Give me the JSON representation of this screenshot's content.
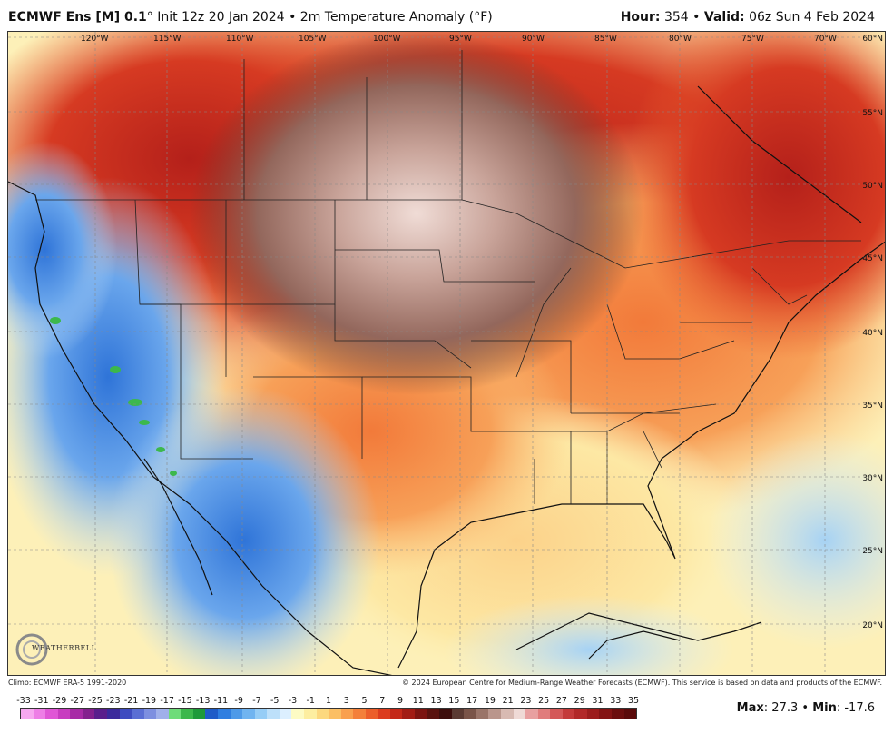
{
  "header": {
    "model": "ECMWF Ens [M] 0.1",
    "degree": "°",
    "init": "Init 12z 20 Jan 2024",
    "bullet": "•",
    "field": "2m Temperature Anomaly (°F)",
    "hour_label": "Hour:",
    "hour_value": "354",
    "valid_label": "Valid:",
    "valid_value": "06z Sun 4 Feb 2024"
  },
  "map": {
    "longitude_labels": [
      "120°W",
      "115°W",
      "110°W",
      "105°W",
      "100°W",
      "95°W",
      "90°W",
      "85°W",
      "80°W",
      "75°W",
      "70°W"
    ],
    "latitude_labels": [
      "60°N",
      "55°N",
      "50°N",
      "45°N",
      "40°N",
      "35°N",
      "30°N",
      "25°N",
      "20°N"
    ]
  },
  "credits": {
    "climo": "Climo: ECMWF ERA-5 1991-2020",
    "copyright": "© 2024 European Centre for Medium-Range Weather Forecasts (ECMWF). This service is based on data and products of the ECMWF."
  },
  "logo": {
    "text": "WEATHERBELL"
  },
  "scale": {
    "labels": [
      "-33",
      "-31",
      "-29",
      "-27",
      "-25",
      "-23",
      "-21",
      "-19",
      "-17",
      "-15",
      "-13",
      "-11",
      "-9",
      "-7",
      "-5",
      "-3",
      "-1",
      "1",
      "3",
      "5",
      "7",
      "9",
      "11",
      "13",
      "15",
      "17",
      "19",
      "21",
      "23",
      "25",
      "27",
      "29",
      "31",
      "33",
      "35"
    ],
    "colors": [
      "#f7a8f0",
      "#ee7ee6",
      "#e056d6",
      "#c83cc0",
      "#a82aa6",
      "#84208e",
      "#5a1e8c",
      "#3b2a9c",
      "#3e4bc0",
      "#5a6ed4",
      "#7d8fe0",
      "#a0b0ea",
      "#6edc7a",
      "#3cb84c",
      "#1e9a3a",
      "#1f5cc8",
      "#2f7ee0",
      "#4e9ae8",
      "#70b4f0",
      "#96cdf6",
      "#bde0fa",
      "#dcefff",
      "#fdfbc4",
      "#fdeea0",
      "#fcd87e",
      "#fbbf64",
      "#f9a04e",
      "#f4803a",
      "#ec5e2a",
      "#dc3c1e",
      "#c42818",
      "#a21c14",
      "#7c1410",
      "#5a120e",
      "#3e0e0c",
      "#5b3a32",
      "#7a5448",
      "#9a7468",
      "#ba968c",
      "#d8bab2",
      "#efdad6",
      "#e8a0a0",
      "#e07c7c",
      "#d45858",
      "#c43a3a",
      "#b22828",
      "#9c1c1c",
      "#841414",
      "#6c0e0e",
      "#5a0a0a"
    ]
  },
  "stats": {
    "max_label": "Max",
    "max_value": ": 27.3",
    "sep": " • ",
    "min_label": "Min",
    "min_value": ": -17.6"
  }
}
